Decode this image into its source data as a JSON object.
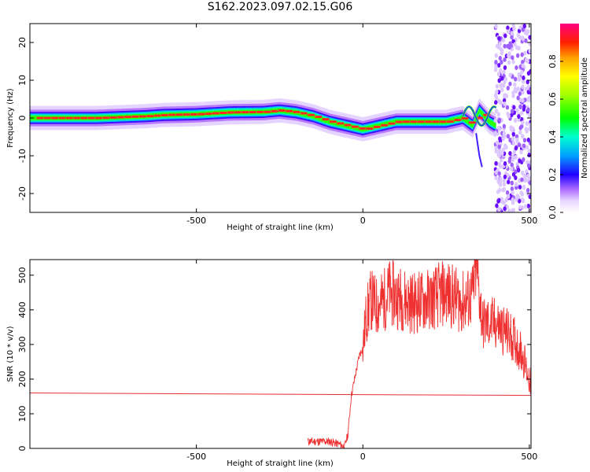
{
  "title": "S162.2023.097.02.15.G06",
  "charts": {
    "spectrogram": {
      "xlabel": "Height of straight line (km)",
      "ylabel": "Frequency (Hz)",
      "xlim": [
        -1000,
        505
      ],
      "ylim": [
        -25,
        25
      ],
      "xticks": [
        -500,
        0,
        500
      ],
      "yticks": [
        -20,
        -10,
        0,
        10,
        20
      ],
      "colorbar": {
        "label": "Normalized spectral amplitude",
        "ticks": [
          "0.0",
          "0.2",
          "0.4",
          "0.6",
          "0.8"
        ]
      }
    },
    "snr": {
      "xlabel": "Height of straight line (km)",
      "ylabel": "SNR (10 * v/v)",
      "xlim": [
        -1000,
        505
      ],
      "ylim": [
        0,
        545
      ],
      "xticks": [
        -500,
        0,
        500
      ],
      "yticks": [
        0,
        100,
        200,
        300,
        400,
        500
      ]
    }
  },
  "chart_data": [
    {
      "type": "heatmap",
      "title": "S162.2023.097.02.15.G06",
      "xlabel": "Height of straight line (km)",
      "ylabel": "Frequency (Hz)",
      "x_range": [
        -1000,
        505
      ],
      "y_range": [
        -25,
        25
      ],
      "ridge_frequency": [
        {
          "x": -1000,
          "y": 0
        },
        {
          "x": -800,
          "y": 0
        },
        {
          "x": -650,
          "y": 0.5
        },
        {
          "x": -600,
          "y": 0.8
        },
        {
          "x": -500,
          "y": 1
        },
        {
          "x": -400,
          "y": 1.5
        },
        {
          "x": -300,
          "y": 1.6
        },
        {
          "x": -250,
          "y": 2
        },
        {
          "x": -200,
          "y": 1.5
        },
        {
          "x": -150,
          "y": 0.5
        },
        {
          "x": -100,
          "y": -1
        },
        {
          "x": -50,
          "y": -2
        },
        {
          "x": 0,
          "y": -3
        },
        {
          "x": 50,
          "y": -2
        },
        {
          "x": 100,
          "y": -1
        },
        {
          "x": 150,
          "y": -1
        },
        {
          "x": 200,
          "y": -1
        },
        {
          "x": 250,
          "y": -1
        },
        {
          "x": 300,
          "y": 0
        },
        {
          "x": 330,
          "y": -2
        },
        {
          "x": 350,
          "y": 2
        },
        {
          "x": 380,
          "y": -1
        },
        {
          "x": 400,
          "y": -2
        }
      ],
      "colorbar_range": [
        0,
        1
      ]
    },
    {
      "type": "line",
      "title": "",
      "xlabel": "Height of straight line (km)",
      "ylabel": "SNR (10 * v/v)",
      "xlim": [
        -1000,
        505
      ],
      "ylim": [
        0,
        545
      ],
      "series": [
        {
          "x": [
            -1000,
            505
          ],
          "y": [
            160,
            153
          ]
        },
        {
          "x": [
            -165,
            -100,
            -70,
            -55,
            -45,
            -35,
            -25,
            -10,
            0,
            10,
            25,
            40,
            60,
            80,
            100,
            150,
            200,
            250,
            300,
            330,
            340,
            360,
            400,
            450,
            480,
            505
          ],
          "y": [
            20,
            20,
            12,
            5,
            40,
            150,
            200,
            270,
            290,
            380,
            430,
            410,
            425,
            450,
            440,
            420,
            430,
            450,
            420,
            440,
            530,
            360,
            360,
            320,
            270,
            180
          ]
        }
      ]
    }
  ]
}
